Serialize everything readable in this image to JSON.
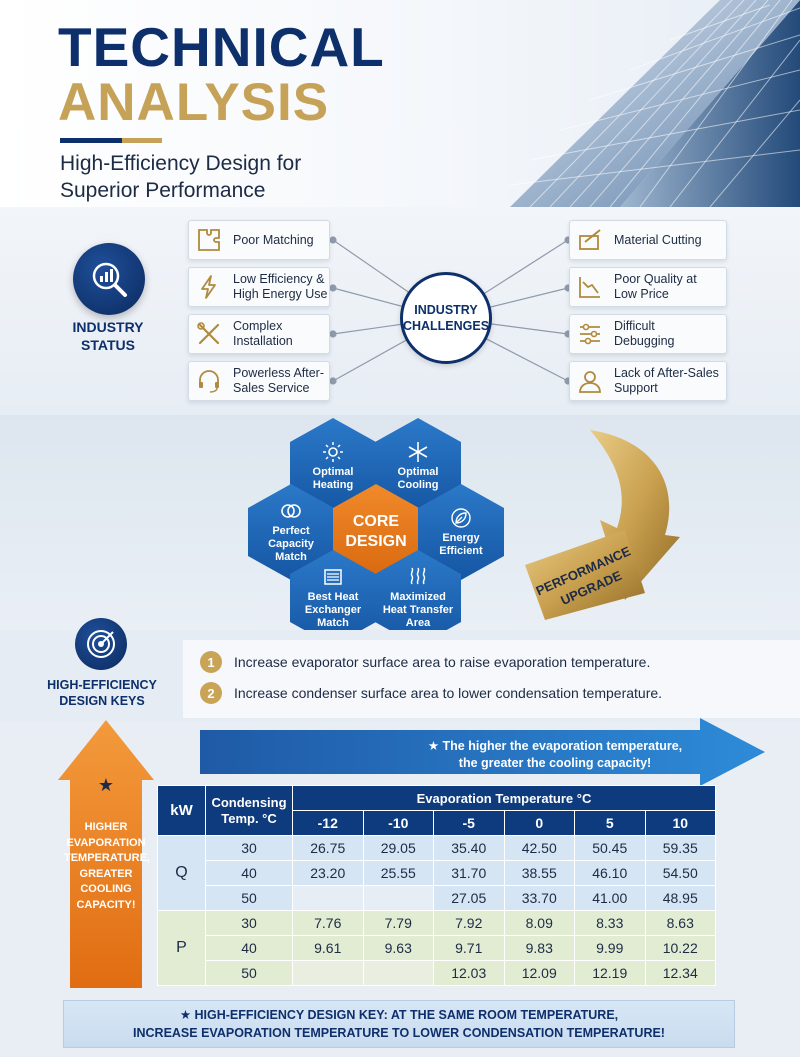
{
  "header": {
    "title_line1": "TECHNICAL",
    "title_line2": "ANALYSIS",
    "subtitle_line1": "High-Efficiency Design for",
    "subtitle_line2": "Superior Performance"
  },
  "industry_status": {
    "label_line1": "INDUSTRY",
    "label_line2": "STATUS",
    "hub_line1": "INDUSTRY",
    "hub_line2": "CHALLENGES",
    "left_items": [
      {
        "icon": "puzzle-icon",
        "line1": "Poor Matching",
        "line2": ""
      },
      {
        "icon": "lightning-icon",
        "line1": "Low Efficiency &",
        "line2": "High Energy Use"
      },
      {
        "icon": "tools-icon",
        "line1": "Complex",
        "line2": "Installation"
      },
      {
        "icon": "headset-icon",
        "line1": "Powerless After-",
        "line2": "Sales Service"
      }
    ],
    "right_items": [
      {
        "icon": "cutting-icon",
        "line1": "Material Cutting",
        "line2": ""
      },
      {
        "icon": "decline-chart-icon",
        "line1": "Poor Quality at",
        "line2": "Low Price"
      },
      {
        "icon": "sliders-icon",
        "line1": "Difficult",
        "line2": "Debugging"
      },
      {
        "icon": "user-icon",
        "line1": "Lack of After-Sales",
        "line2": "Support"
      }
    ]
  },
  "core_design": {
    "center_line1": "CORE",
    "center_line2": "DESIGN",
    "hexes": [
      {
        "icon": "sun-icon",
        "line1": "Optimal",
        "line2": "Heating",
        "line3": ""
      },
      {
        "icon": "snowflake-icon",
        "line1": "Optimal",
        "line2": "Cooling",
        "line3": ""
      },
      {
        "icon": "circles-icon",
        "line1": "Perfect",
        "line2": "Capacity",
        "line3": "Match"
      },
      {
        "icon": "leaf-icon",
        "line1": "Energy",
        "line2": "Efficient",
        "line3": ""
      },
      {
        "icon": "heat-exchanger-icon",
        "line1": "Best Heat",
        "line2": "Exchanger",
        "line3": "Match"
      },
      {
        "icon": "heat-waves-icon",
        "line1": "Maximized",
        "line2": "Heat Transfer",
        "line3": "Area"
      }
    ],
    "upgrade_line1": "PERFORMANCE",
    "upgrade_line2": "UPGRADE"
  },
  "design_keys": {
    "label_line1": "HIGH-EFFICIENCY",
    "label_line2": "DESIGN KEYS",
    "items": [
      {
        "num": "1",
        "text": "Increase evaporator surface area to raise evaporation temperature."
      },
      {
        "num": "2",
        "text": "Increase condenser surface area to lower condensation temperature."
      }
    ]
  },
  "arrow_note": {
    "line1": "★ The higher the evaporation temperature,",
    "line2": "the greater the cooling capacity!"
  },
  "side_arrow": {
    "star": "★",
    "lines": [
      "HIGHER",
      "EVAPORATION",
      "TEMPERATURE,",
      "GREATER",
      "COOLING",
      "CAPACITY!"
    ]
  },
  "table": {
    "unit_header": "kW",
    "cond_header_line1": "Condensing",
    "cond_header_line2": "Temp. °C",
    "evap_header": "Evaporation Temperature °C",
    "evap_temps": [
      "-12",
      "-10",
      "-5",
      "0",
      "5",
      "10"
    ],
    "groups": [
      {
        "label": "Q",
        "rows": [
          {
            "cond": "30",
            "values": [
              "26.75",
              "29.05",
              "35.40",
              "42.50",
              "50.45",
              "59.35"
            ]
          },
          {
            "cond": "40",
            "values": [
              "23.20",
              "25.55",
              "31.70",
              "38.55",
              "46.10",
              "54.50"
            ]
          },
          {
            "cond": "50",
            "values": [
              "",
              "",
              "27.05",
              "33.70",
              "41.00",
              "48.95"
            ]
          }
        ]
      },
      {
        "label": "P",
        "rows": [
          {
            "cond": "30",
            "values": [
              "7.76",
              "7.79",
              "7.92",
              "8.09",
              "8.33",
              "8.63"
            ]
          },
          {
            "cond": "40",
            "values": [
              "9.61",
              "9.63",
              "9.71",
              "9.83",
              "9.99",
              "10.22"
            ]
          },
          {
            "cond": "50",
            "values": [
              "",
              "",
              "12.03",
              "12.09",
              "12.19",
              "12.34"
            ]
          }
        ]
      }
    ]
  },
  "bottom_note": {
    "line1": "★ HIGH-EFFICIENCY DESIGN KEY: AT THE SAME ROOM TEMPERATURE,",
    "line2": "INCREASE EVAPORATION TEMPERATURE TO LOWER CONDENSATION TEMPERATURE!"
  },
  "colors": {
    "navy": "#0d2f6b",
    "gold": "#c5a257",
    "blue": "#1f6fc1",
    "orange": "#f08a2a"
  }
}
